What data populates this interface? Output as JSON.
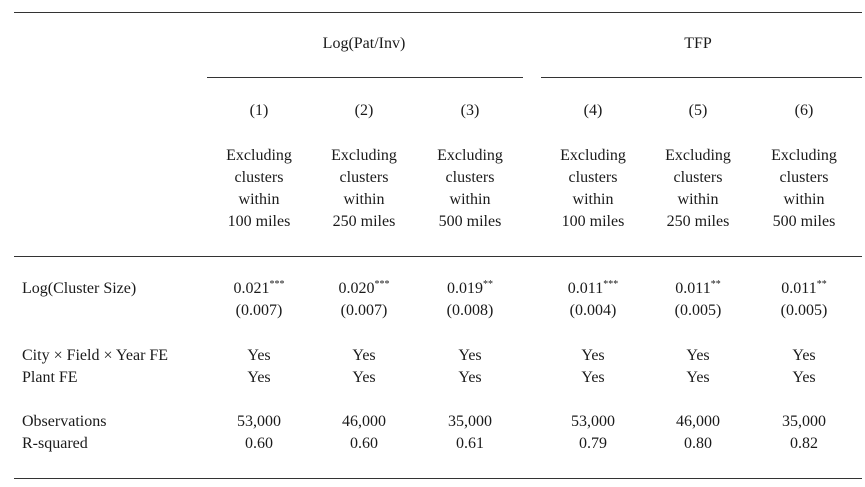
{
  "table": {
    "group_headers": [
      "Log(Pat/Inv)",
      "TFP"
    ],
    "column_numbers": [
      "(1)",
      "(2)",
      "(3)",
      "(4)",
      "(5)",
      "(6)"
    ],
    "column_descriptions": [
      [
        "Excluding",
        "clusters",
        "within",
        "100 miles"
      ],
      [
        "Excluding",
        "clusters",
        "within",
        "250 miles"
      ],
      [
        "Excluding",
        "clusters",
        "within",
        "500 miles"
      ],
      [
        "Excluding",
        "clusters",
        "within",
        "100 miles"
      ],
      [
        "Excluding",
        "clusters",
        "within",
        "250 miles"
      ],
      [
        "Excluding",
        "clusters",
        "within",
        "500 miles"
      ]
    ],
    "rows": {
      "cluster_size": {
        "label": "Log(Cluster Size)",
        "coefficients": [
          "0.021",
          "0.020",
          "0.019",
          "0.011",
          "0.011",
          "0.011"
        ],
        "stars": [
          "***",
          "***",
          "**",
          "***",
          "**",
          "**"
        ],
        "std_errors": [
          "(0.007)",
          "(0.007)",
          "(0.008)",
          "(0.004)",
          "(0.005)",
          "(0.005)"
        ]
      },
      "city_fe": {
        "label": "City × Field × Year FE",
        "values": [
          "Yes",
          "Yes",
          "Yes",
          "Yes",
          "Yes",
          "Yes"
        ]
      },
      "plant_fe": {
        "label": "Plant FE",
        "values": [
          "Yes",
          "Yes",
          "Yes",
          "Yes",
          "Yes",
          "Yes"
        ]
      },
      "observations": {
        "label": "Observations",
        "values": [
          "53,000",
          "46,000",
          "35,000",
          "53,000",
          "46,000",
          "35,000"
        ]
      },
      "r_squared": {
        "label": "R-squared",
        "values": [
          "0.60",
          "0.60",
          "0.61",
          "0.79",
          "0.80",
          "0.82"
        ]
      }
    }
  }
}
